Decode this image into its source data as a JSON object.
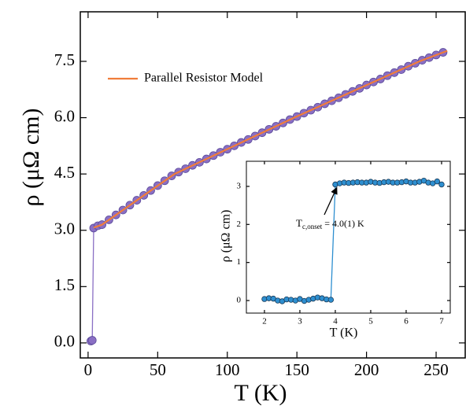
{
  "chart_data": [
    {
      "type": "scatter",
      "xlabel": "T (K)",
      "ylabel": "ρ (μΩ cm)",
      "xlim": [
        -5.6,
        270.9
      ],
      "ylim": [
        -0.4,
        8.82
      ],
      "xticks": [
        0,
        50,
        100,
        150,
        200,
        250
      ],
      "yticks": [
        {
          "value": 0,
          "label": "0.0"
        },
        1.5,
        {
          "value": 3,
          "label": "3.0"
        },
        4.5,
        {
          "value": 6,
          "label": "6.0"
        },
        7.5
      ],
      "legend": "upper left",
      "series": [
        {
          "color": "#8a6fc4",
          "marker": true,
          "x": [
            2,
            3,
            4,
            7,
            10,
            15,
            20,
            25,
            30,
            35,
            40,
            45,
            50,
            55,
            60,
            65,
            70,
            75,
            80,
            85,
            90,
            95,
            100,
            105,
            110,
            115,
            120,
            125,
            130,
            135,
            140,
            145,
            150,
            155,
            160,
            165,
            170,
            175,
            180,
            185,
            190,
            195,
            200,
            205,
            210,
            215,
            220,
            225,
            230,
            235,
            240,
            245,
            250,
            255
          ],
          "values": [
            0.05,
            0.07,
            3.06,
            3.12,
            3.15,
            3.28,
            3.41,
            3.54,
            3.67,
            3.8,
            3.93,
            4.06,
            4.19,
            4.32,
            4.45,
            4.55,
            4.64,
            4.73,
            4.81,
            4.9,
            4.99,
            5.08,
            5.16,
            5.25,
            5.34,
            5.42,
            5.51,
            5.6,
            5.69,
            5.77,
            5.86,
            5.95,
            6.03,
            6.12,
            6.2,
            6.28,
            6.37,
            6.45,
            6.53,
            6.62,
            6.7,
            6.78,
            6.87,
            6.95,
            7.03,
            7.12,
            7.2,
            7.28,
            7.37,
            7.45,
            7.53,
            7.6,
            7.67,
            7.74
          ]
        },
        {
          "name": "Parallel Resistor Model",
          "color": "#f07d3a",
          "marker": false,
          "x": [
            4,
            10,
            62,
            148,
            238,
            258
          ],
          "values": [
            3.07,
            3.15,
            4.5,
            6.0,
            7.5,
            7.78
          ]
        }
      ]
    },
    {
      "type": "scatter",
      "xlabel": "T (K)",
      "ylabel": "ρ (μΩ cm)",
      "xlim": [
        1.49,
        7.245
      ],
      "ylim": [
        -0.33,
        3.66
      ],
      "xticks": [
        2,
        3,
        4,
        5,
        6,
        7
      ],
      "yticks": [
        0,
        1,
        2,
        3
      ],
      "annotation": {
        "text": "T",
        "sub": "c,onset",
        "rest": " = 4.0(1) K",
        "x": 4.02,
        "y": 3.05
      },
      "series": [
        {
          "color": "#2e8fd0",
          "marker": true,
          "x": [
            2.0,
            2.125,
            2.25,
            2.375,
            2.5,
            2.625,
            2.75,
            2.875,
            3.0,
            3.125,
            3.25,
            3.375,
            3.5,
            3.625,
            3.75,
            3.875,
            4.0,
            4.125,
            4.25,
            4.375,
            4.5,
            4.625,
            4.75,
            4.875,
            5.0,
            5.125,
            5.25,
            5.375,
            5.5,
            5.625,
            5.75,
            5.875,
            6.0,
            6.125,
            6.25,
            6.375,
            6.5,
            6.625,
            6.75,
            6.875,
            7.0
          ],
          "values": [
            0.04,
            0.06,
            0.05,
            0.0,
            -0.02,
            0.03,
            0.02,
            0.0,
            0.04,
            -0.01,
            0.02,
            0.05,
            0.08,
            0.06,
            0.03,
            0.02,
            3.05,
            3.08,
            3.1,
            3.09,
            3.1,
            3.11,
            3.1,
            3.1,
            3.12,
            3.1,
            3.09,
            3.11,
            3.12,
            3.1,
            3.1,
            3.11,
            3.13,
            3.1,
            3.1,
            3.12,
            3.15,
            3.1,
            3.08,
            3.13,
            3.05
          ]
        }
      ]
    }
  ]
}
